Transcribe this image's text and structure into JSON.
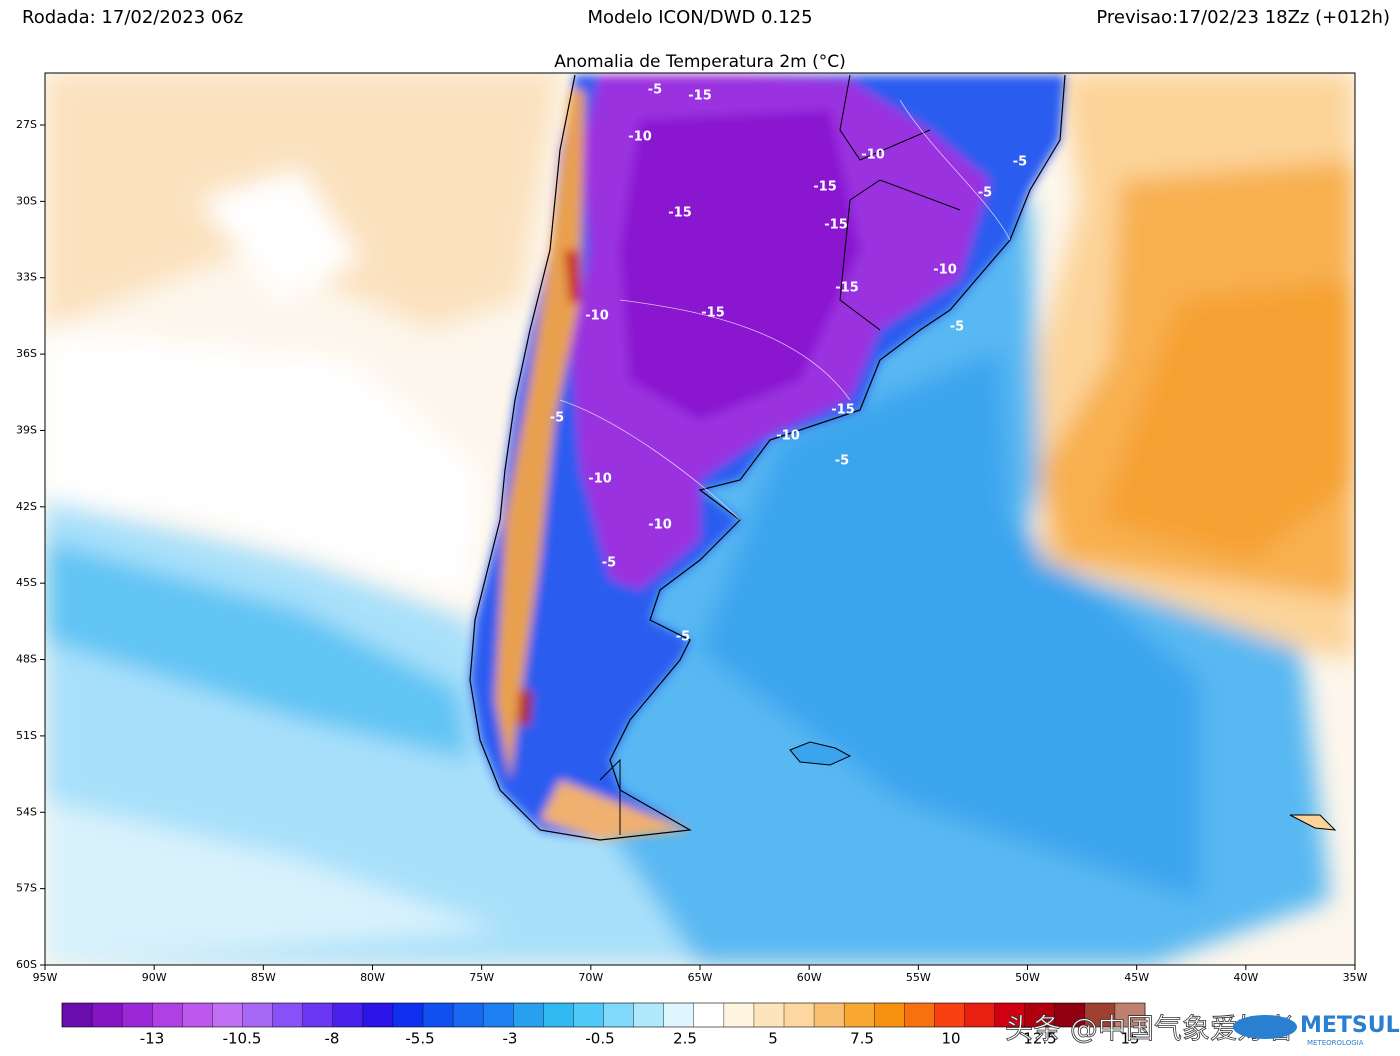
{
  "header": {
    "run": "Rodada: 17/02/2023 06z",
    "model": "Modelo ICON/DWD 0.125",
    "forecast": "Previsao:17/02/23 18Zz (+012h)"
  },
  "title": "Anomalia de Temperatura 2m (°C)",
  "map": {
    "lat_ticks": [
      "27S",
      "30S",
      "33S",
      "36S",
      "39S",
      "42S",
      "45S",
      "48S",
      "51S",
      "54S",
      "57S",
      "60S"
    ],
    "lon_ticks": [
      "95W",
      "90W",
      "85W",
      "80W",
      "75W",
      "70W",
      "65W",
      "60W",
      "55W",
      "50W",
      "45W",
      "40W",
      "35W"
    ],
    "contour_labels": [
      "-5",
      "-15",
      "-10",
      "-10",
      "-5",
      "-15",
      "-5",
      "-15",
      "-15",
      "-10",
      "-15",
      "-10",
      "-15",
      "-5",
      "-15",
      "-10",
      "-5",
      "-5",
      "-10",
      "-10",
      "-5",
      "-5"
    ]
  },
  "colorbar": {
    "labels": [
      "-13",
      "-10.5",
      "-8",
      "-5.5",
      "-3",
      "-0.5",
      "2.5",
      "5",
      "7.5",
      "10",
      "12.5",
      "15"
    ],
    "colors": [
      "#6a0dad",
      "#8414c4",
      "#9a28d8",
      "#ae40e4",
      "#bc58ec",
      "#c070f4",
      "#a868f6",
      "#8a50f8",
      "#6a38f2",
      "#4a20ec",
      "#2a14e8",
      "#1030f0",
      "#1050f0",
      "#1868f0",
      "#1e80f0",
      "#28a0f0",
      "#30b8f0",
      "#50c8f8",
      "#80d8fa",
      "#b0e8fc",
      "#e0f6ff",
      "#ffffff",
      "#fff4e0",
      "#fde4bc",
      "#fcd8a0",
      "#f8c070",
      "#f8a830",
      "#f89010",
      "#f87010",
      "#f84010",
      "#e82010",
      "#d00010",
      "#b00010",
      "#900010",
      "#a04030",
      "#c08070"
    ]
  },
  "watermark": "头条 @中国气象爱好者",
  "logo": {
    "name": "METSUL",
    "sub": "METEOROLOGIA"
  }
}
